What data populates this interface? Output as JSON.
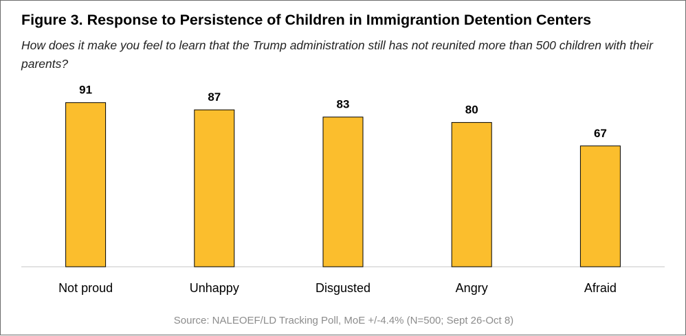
{
  "title": "Figure 3. Response to Persistence of Children in Immigrantion Detention Centers",
  "subtitle": "How does it make you feel to learn that the Trump administration still has not reunited more than 500 children with their parents?",
  "source": "Source: NALEOEF/LD Tracking Poll, MoE +/-4.4% (N=500; Sept 26-Oct 8)",
  "colors": {
    "bar_fill": "#FBBE2D",
    "bar_stroke": "#000000",
    "baseline": "#D9D9D9"
  },
  "chart_data": {
    "type": "bar",
    "title": "Figure 3. Response to Persistence of Children in Immigrantion Detention Centers",
    "subtitle": "How does it make you feel to learn that the Trump administration still has not reunited more than 500 children with their parents?",
    "categories": [
      "Not proud",
      "Unhappy",
      "Disgusted",
      "Angry",
      "Afraid"
    ],
    "values": [
      91,
      87,
      83,
      80,
      67
    ],
    "data_labels": [
      "91",
      "87",
      "83",
      "80",
      "67"
    ],
    "xlabel": "",
    "ylabel": "",
    "ylim": [
      0,
      100
    ],
    "grid": false,
    "legend": "none"
  }
}
